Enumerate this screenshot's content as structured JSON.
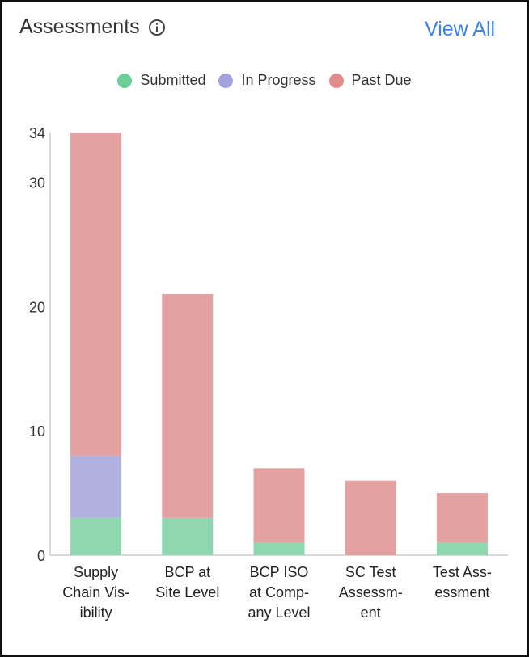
{
  "header": {
    "title": "Assessments",
    "view_all_label": "View All",
    "info_icon": "info-icon"
  },
  "colors": {
    "submitted": "#8fd7ae",
    "in_progress": "#b1b1df",
    "past_due": "#e3a1a1",
    "link": "#3b82e6",
    "axis": "#cccccc"
  },
  "legend": [
    {
      "label": "Submitted",
      "color": "#6bcf98"
    },
    {
      "label": "In Progress",
      "color": "#a2a2dd"
    },
    {
      "label": "Past Due",
      "color": "#e08c8c"
    }
  ],
  "chart_data": {
    "type": "bar",
    "stacked": true,
    "title": "Assessments",
    "categories": [
      "Supply Chain Visibility",
      "BCP at Site Level",
      "BCP ISO at Company Level",
      "SC Test Assessment",
      "Test Assessment"
    ],
    "category_label_lines": [
      [
        "Supply",
        "Chain Vis-",
        "ibility"
      ],
      [
        "BCP at",
        "Site Level"
      ],
      [
        "BCP ISO",
        "at Comp-",
        "any Level"
      ],
      [
        "SC Test",
        "Assessm-",
        "ent"
      ],
      [
        "Test Ass-",
        "essment"
      ]
    ],
    "series": [
      {
        "name": "Submitted",
        "values": [
          3,
          3,
          1,
          0,
          1
        ]
      },
      {
        "name": "In Progress",
        "values": [
          5,
          0,
          0,
          0,
          0
        ]
      },
      {
        "name": "Past Due",
        "values": [
          26,
          18,
          6,
          6,
          4
        ]
      }
    ],
    "y_ticks": [
      0,
      10,
      20,
      30,
      34
    ],
    "ylim": [
      0,
      34
    ],
    "xlabel": "",
    "ylabel": "",
    "legend_position": "top-center"
  }
}
